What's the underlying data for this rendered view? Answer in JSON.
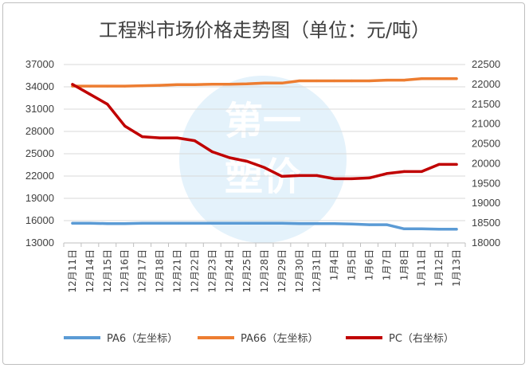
{
  "chart_data": {
    "type": "line",
    "title": "工程料市场价格走势图（单位：元/吨）",
    "categories": [
      "12月11日",
      "12月14日",
      "12月15日",
      "12月16日",
      "12月17日",
      "12月18日",
      "12月21日",
      "12月22日",
      "12月23日",
      "12月24日",
      "12月25日",
      "12月28日",
      "12月29日",
      "12月30日",
      "12月31日",
      "1月4日",
      "1月5日",
      "1月6日",
      "1月7日",
      "1月8日",
      "1月11日",
      "1月12日",
      "1月13日"
    ],
    "y_left": {
      "min": 13000,
      "max": 37000,
      "ticks": [
        "13000",
        "16000",
        "19000",
        "22000",
        "25000",
        "28000",
        "31000",
        "34000",
        "37000"
      ]
    },
    "y_right": {
      "min": 18000,
      "max": 22500,
      "ticks": [
        "18000",
        "18500",
        "19000",
        "19500",
        "20000",
        "20500",
        "21000",
        "21500",
        "22000",
        "22500"
      ]
    },
    "series": [
      {
        "name": "PA6（左坐标）",
        "axis": "left",
        "color": "#5b9bd5",
        "values": [
          15650,
          15650,
          15600,
          15600,
          15650,
          15650,
          15650,
          15650,
          15650,
          15650,
          15650,
          15650,
          15650,
          15600,
          15600,
          15600,
          15550,
          15450,
          15450,
          14900,
          14900,
          14850,
          14850
        ]
      },
      {
        "name": "PA66（左坐标）",
        "axis": "left",
        "color": "#ed7d31",
        "values": [
          34100,
          34100,
          34100,
          34100,
          34150,
          34200,
          34300,
          34300,
          34350,
          34350,
          34400,
          34500,
          34500,
          34800,
          34800,
          34800,
          34800,
          34800,
          34900,
          34900,
          35100,
          35100,
          35100
        ]
      },
      {
        "name": "PC（右坐标）",
        "axis": "right",
        "color": "#c00000",
        "values": [
          22000,
          21750,
          21500,
          20950,
          20680,
          20650,
          20650,
          20580,
          20300,
          20150,
          20060,
          19900,
          19680,
          19700,
          19700,
          19620,
          19620,
          19640,
          19750,
          19800,
          19800,
          19980,
          19980
        ]
      }
    ],
    "grid": true,
    "legend_position": "bottom",
    "watermark": "第一塑价"
  }
}
